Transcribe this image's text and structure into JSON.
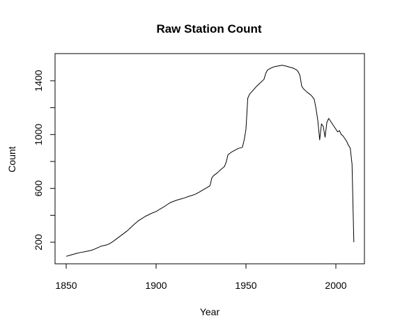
{
  "chart_data": {
    "type": "line",
    "title": "Raw Station Count",
    "xlabel": "Year",
    "ylabel": "Count",
    "xlim": [
      1850,
      2010
    ],
    "ylim": [
      100,
      1530
    ],
    "x_ticks": [
      1850,
      1900,
      1950,
      2000
    ],
    "y_ticks": [
      200,
      600,
      1000,
      1400
    ],
    "grid": false,
    "series": [
      {
        "color": "#000000",
        "points": [
          [
            1850,
            95
          ],
          [
            1852,
            103
          ],
          [
            1854,
            110
          ],
          [
            1856,
            118
          ],
          [
            1858,
            124
          ],
          [
            1860,
            128
          ],
          [
            1862,
            134
          ],
          [
            1864,
            140
          ],
          [
            1866,
            150
          ],
          [
            1868,
            162
          ],
          [
            1870,
            173
          ],
          [
            1872,
            178
          ],
          [
            1874,
            188
          ],
          [
            1876,
            205
          ],
          [
            1878,
            225
          ],
          [
            1880,
            245
          ],
          [
            1882,
            265
          ],
          [
            1884,
            285
          ],
          [
            1886,
            310
          ],
          [
            1888,
            335
          ],
          [
            1890,
            358
          ],
          [
            1892,
            375
          ],
          [
            1894,
            392
          ],
          [
            1896,
            405
          ],
          [
            1898,
            418
          ],
          [
            1900,
            428
          ],
          [
            1902,
            445
          ],
          [
            1904,
            460
          ],
          [
            1906,
            478
          ],
          [
            1908,
            495
          ],
          [
            1910,
            505
          ],
          [
            1912,
            515
          ],
          [
            1914,
            522
          ],
          [
            1916,
            530
          ],
          [
            1918,
            540
          ],
          [
            1920,
            548
          ],
          [
            1922,
            558
          ],
          [
            1924,
            572
          ],
          [
            1926,
            588
          ],
          [
            1928,
            603
          ],
          [
            1930,
            620
          ],
          [
            1931,
            678
          ],
          [
            1932,
            695
          ],
          [
            1934,
            715
          ],
          [
            1936,
            740
          ],
          [
            1938,
            762
          ],
          [
            1939,
            795
          ],
          [
            1940,
            850
          ],
          [
            1941,
            860
          ],
          [
            1942,
            870
          ],
          [
            1944,
            885
          ],
          [
            1946,
            898
          ],
          [
            1948,
            905
          ],
          [
            1949,
            960
          ],
          [
            1950,
            1040
          ],
          [
            1951,
            1270
          ],
          [
            1952,
            1300
          ],
          [
            1954,
            1330
          ],
          [
            1956,
            1360
          ],
          [
            1958,
            1385
          ],
          [
            1960,
            1410
          ],
          [
            1961,
            1455
          ],
          [
            1962,
            1480
          ],
          [
            1964,
            1495
          ],
          [
            1966,
            1505
          ],
          [
            1968,
            1510
          ],
          [
            1970,
            1515
          ],
          [
            1972,
            1510
          ],
          [
            1974,
            1502
          ],
          [
            1976,
            1495
          ],
          [
            1978,
            1482
          ],
          [
            1979,
            1468
          ],
          [
            1980,
            1440
          ],
          [
            1981,
            1360
          ],
          [
            1982,
            1340
          ],
          [
            1984,
            1315
          ],
          [
            1986,
            1295
          ],
          [
            1987,
            1280
          ],
          [
            1988,
            1260
          ],
          [
            1989,
            1190
          ],
          [
            1990,
            1100
          ],
          [
            1991,
            960
          ],
          [
            1992,
            1080
          ],
          [
            1993,
            1060
          ],
          [
            1994,
            980
          ],
          [
            1995,
            1090
          ],
          [
            1996,
            1120
          ],
          [
            1997,
            1100
          ],
          [
            1998,
            1080
          ],
          [
            1999,
            1060
          ],
          [
            2000,
            1040
          ],
          [
            2001,
            1020
          ],
          [
            2002,
            1030
          ],
          [
            2003,
            1000
          ],
          [
            2004,
            990
          ],
          [
            2005,
            970
          ],
          [
            2006,
            950
          ],
          [
            2007,
            920
          ],
          [
            2008,
            900
          ],
          [
            2009,
            780
          ],
          [
            2010,
            200
          ]
        ]
      }
    ]
  }
}
